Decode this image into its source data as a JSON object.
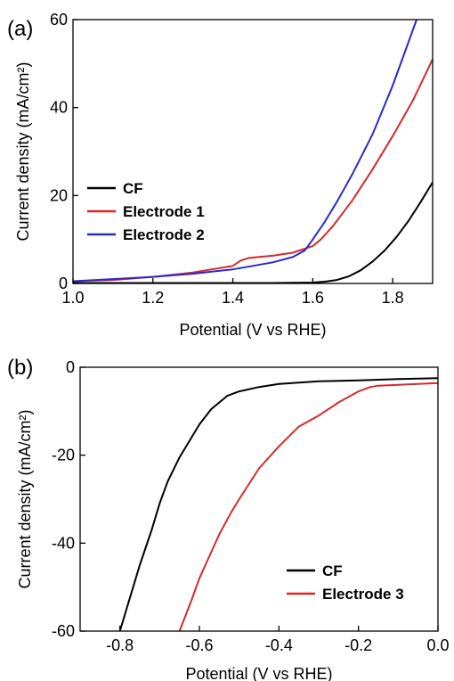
{
  "chart_data": [
    {
      "panel_label": "(a)",
      "type": "line",
      "xlabel": "Potential (V vs RHE)",
      "ylabel": "Current density (mA/cm²)",
      "xlim": [
        1.0,
        1.9
      ],
      "ylim": [
        0,
        60
      ],
      "xticks": [
        1.0,
        1.2,
        1.4,
        1.6,
        1.8
      ],
      "xtick_labels": [
        "1.0",
        "1.2",
        "1.4",
        "1.6",
        "1.8"
      ],
      "yticks": [
        0,
        20,
        40,
        60
      ],
      "ytick_labels": [
        "0",
        "20",
        "40",
        "60"
      ],
      "legend_position": "middle-left",
      "grid": false,
      "series": [
        {
          "name": "CF",
          "color": "#000000",
          "x": [
            1.0,
            1.2,
            1.4,
            1.5,
            1.6,
            1.63,
            1.66,
            1.69,
            1.72,
            1.75,
            1.78,
            1.81,
            1.84,
            1.87,
            1.9
          ],
          "y": [
            0.1,
            0.1,
            0.1,
            0.1,
            0.2,
            0.4,
            0.8,
            1.6,
            3.0,
            5.0,
            7.5,
            10.6,
            14.3,
            18.5,
            23.0
          ]
        },
        {
          "name": "Electrode 1",
          "color": "#d42a2a",
          "x": [
            1.0,
            1.1,
            1.2,
            1.3,
            1.4,
            1.42,
            1.44,
            1.5,
            1.55,
            1.6,
            1.62,
            1.65,
            1.7,
            1.75,
            1.8,
            1.85,
            1.9
          ],
          "y": [
            0.5,
            0.8,
            1.5,
            2.5,
            4.0,
            5.2,
            5.8,
            6.3,
            7.0,
            8.5,
            10.0,
            13.0,
            19.0,
            26.0,
            33.5,
            41.5,
            51.0
          ]
        },
        {
          "name": "Electrode 2",
          "color": "#2a2ac8",
          "x": [
            1.0,
            1.1,
            1.2,
            1.3,
            1.4,
            1.45,
            1.5,
            1.55,
            1.58,
            1.6,
            1.63,
            1.66,
            1.7,
            1.75,
            1.8,
            1.83,
            1.86
          ],
          "y": [
            0.5,
            1.0,
            1.5,
            2.2,
            3.2,
            4.0,
            4.8,
            6.0,
            7.5,
            10.0,
            14.0,
            18.5,
            25.0,
            34.0,
            45.0,
            52.5,
            60.0
          ]
        }
      ]
    },
    {
      "panel_label": "(b)",
      "type": "line",
      "xlabel": "Potential (V vs RHE)",
      "ylabel": "Current density (mA/cm²)",
      "xlim": [
        -0.9,
        0.0
      ],
      "ylim": [
        -60,
        0
      ],
      "xticks": [
        -0.8,
        -0.6,
        -0.4,
        -0.2,
        0.0
      ],
      "xtick_labels": [
        "-0.8",
        "-0.6",
        "-0.4",
        "-0.2",
        "0.0"
      ],
      "yticks": [
        0,
        -20,
        -40,
        -60
      ],
      "ytick_labels": [
        "0",
        "-20",
        "-40",
        "-60"
      ],
      "legend_position": "bottom-right",
      "grid": false,
      "series": [
        {
          "name": "CF",
          "color": "#000000",
          "x": [
            -0.8,
            -0.78,
            -0.75,
            -0.72,
            -0.7,
            -0.68,
            -0.65,
            -0.62,
            -0.6,
            -0.57,
            -0.53,
            -0.5,
            -0.45,
            -0.4,
            -0.3,
            -0.2,
            -0.1,
            0.0
          ],
          "y": [
            -60.0,
            -54.0,
            -45.0,
            -37.0,
            -31.0,
            -26.0,
            -20.5,
            -16.0,
            -13.0,
            -9.5,
            -6.5,
            -5.5,
            -4.5,
            -3.8,
            -3.2,
            -3.0,
            -2.7,
            -2.5
          ]
        },
        {
          "name": "Electrode 3",
          "color": "#d42a2a",
          "x": [
            -0.65,
            -0.62,
            -0.6,
            -0.58,
            -0.55,
            -0.52,
            -0.5,
            -0.45,
            -0.4,
            -0.35,
            -0.3,
            -0.25,
            -0.2,
            -0.17,
            -0.15,
            -0.1,
            -0.05,
            0.0
          ],
          "y": [
            -60.0,
            -53.0,
            -48.0,
            -44.0,
            -38.0,
            -33.0,
            -30.0,
            -23.0,
            -18.0,
            -13.5,
            -11.0,
            -8.0,
            -5.5,
            -4.5,
            -4.2,
            -4.0,
            -3.8,
            -3.6
          ]
        }
      ]
    }
  ]
}
